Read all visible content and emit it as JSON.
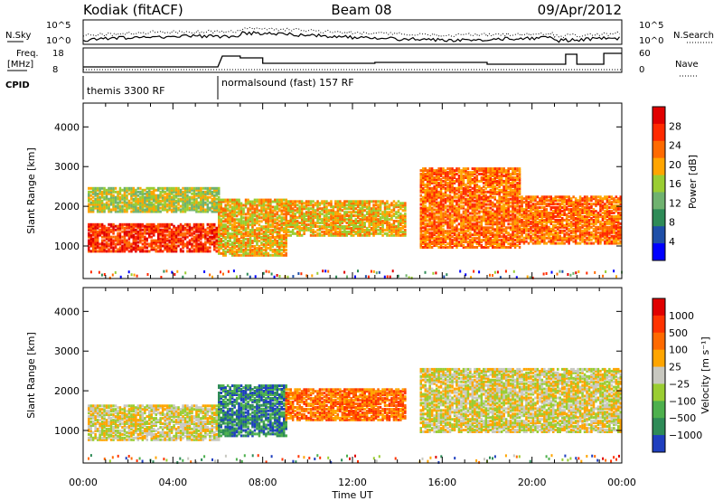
{
  "header": {
    "station": "Kodiak (fitACF)",
    "beam": "Beam 08",
    "date": "09/Apr/2012"
  },
  "side_labels": {
    "nsky": "N.Sky",
    "freq": "Freq.",
    "freq_unit": "[MHz]",
    "cpid": "CPID",
    "nsearch": "N.Search",
    "nave": "Nave"
  },
  "cpid_blocks": [
    {
      "label": "themis 3300 RF",
      "start_hour": 0,
      "end_hour": 6
    },
    {
      "label": "normalsound (fast) 157 RF",
      "start_hour": 6,
      "end_hour": 24
    }
  ],
  "noise_panel": {
    "left_ticks": [
      "10^5",
      "10^0"
    ],
    "right_ticks": [
      "10^5",
      "10^0"
    ]
  },
  "freq_panel": {
    "left_ticks": [
      "18",
      "8"
    ],
    "right_ticks": [
      "60",
      "0"
    ]
  },
  "chart_data": [
    {
      "type": "heatmap",
      "name": "power",
      "ylabel": "Slant Range [km]",
      "ylim": [
        180,
        4600
      ],
      "yticks": [
        "1000",
        "2000",
        "3000",
        "4000"
      ],
      "xlim_hours": [
        0,
        24
      ],
      "colorbar_label": "Power [dB]",
      "colorbar_ticks": [
        "4",
        "8",
        "12",
        "16",
        "20",
        "24",
        "28"
      ],
      "colorbar_colors": [
        "#0000ff",
        "#1e4fa8",
        "#2e8b57",
        "#6fb26f",
        "#9acd32",
        "#ffa500",
        "#ff6a00",
        "#ff2a00",
        "#e00000"
      ],
      "regions": [
        {
          "x": [
            0.2,
            6.0
          ],
          "y": [
            900,
            1600
          ],
          "level": 7
        },
        {
          "x": [
            0.2,
            6.0
          ],
          "y": [
            1900,
            2500
          ],
          "level": 4
        },
        {
          "x": [
            6.0,
            9.0
          ],
          "y": [
            800,
            2200
          ],
          "level": 5
        },
        {
          "x": [
            9.0,
            14.3
          ],
          "y": [
            1300,
            2200
          ],
          "level": 5
        },
        {
          "x": [
            15.0,
            19.5
          ],
          "y": [
            1000,
            3000
          ],
          "level": 6
        },
        {
          "x": [
            19.5,
            24.0
          ],
          "y": [
            1100,
            2300
          ],
          "level": 6
        }
      ]
    },
    {
      "type": "heatmap",
      "name": "velocity",
      "ylabel": "Slant Range [km]",
      "ylim": [
        180,
        4600
      ],
      "yticks": [
        "1000",
        "2000",
        "3000",
        "4000"
      ],
      "xlim_hours": [
        0,
        24
      ],
      "xticks": [
        "00:00",
        "04:00",
        "08:00",
        "12:00",
        "16:00",
        "20:00",
        "00:00"
      ],
      "xlabel": "Time UT",
      "colorbar_label": "Velocity [m s⁻¹]",
      "colorbar_ticks": [
        "1000",
        "500",
        "100",
        "25",
        "−25",
        "−100",
        "−500",
        "−1000"
      ],
      "colorbar_colors": [
        "#1f3fbf",
        "#2e8b57",
        "#4db04d",
        "#9acd32",
        "#c8c8c0",
        "#ffa500",
        "#ff6a00",
        "#ff3300",
        "#e00000"
      ],
      "regions": [
        {
          "x": [
            0.2,
            6.0
          ],
          "y": [
            800,
            1700
          ],
          "level": 4
        },
        {
          "x": [
            6.0,
            9.0
          ],
          "y": [
            900,
            2200
          ],
          "level": 1
        },
        {
          "x": [
            9.0,
            14.3
          ],
          "y": [
            1300,
            2100
          ],
          "level": 6
        },
        {
          "x": [
            15.0,
            24.0
          ],
          "y": [
            1000,
            2600
          ],
          "level": 4
        }
      ]
    }
  ]
}
